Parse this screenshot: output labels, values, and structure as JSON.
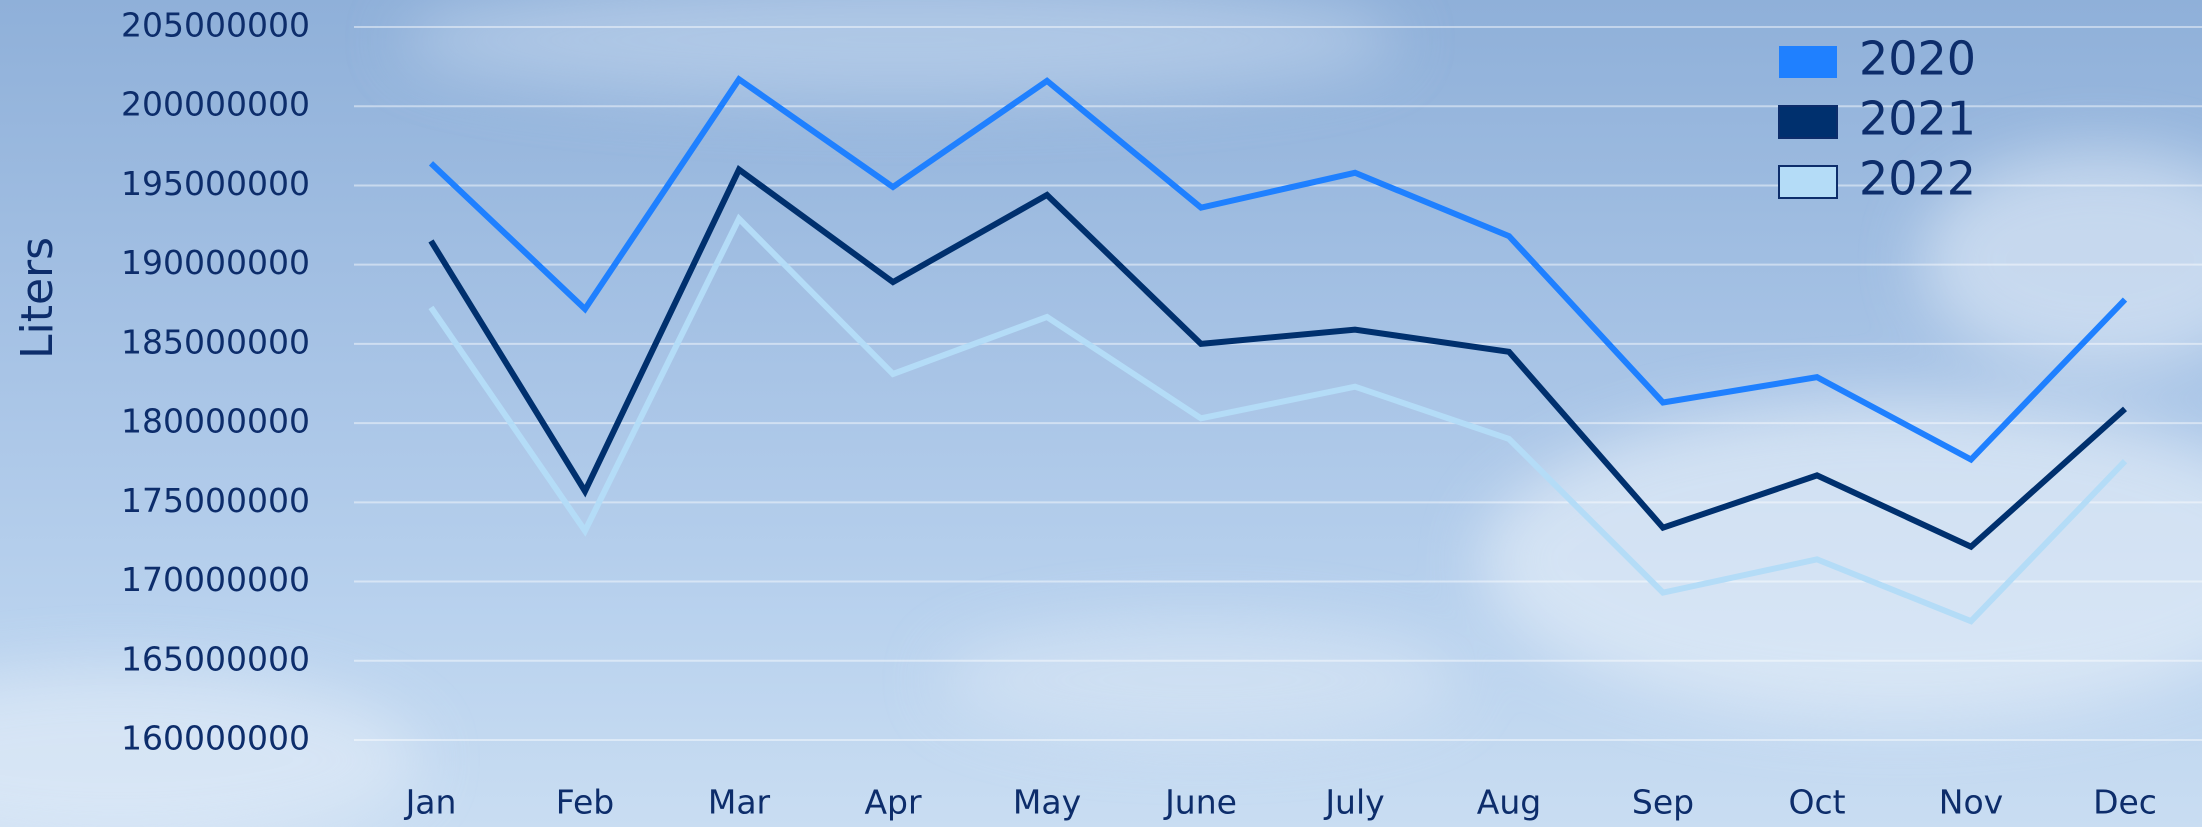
{
  "chart_data": {
    "type": "line",
    "y_label": "Liters",
    "categories": [
      "Jan",
      "Feb",
      "Mar",
      "Apr",
      "May",
      "June",
      "July",
      "Aug",
      "Sep",
      "Oct",
      "Nov",
      "Dec"
    ],
    "series": [
      {
        "name": "2020",
        "color": "#1f80ff",
        "values": [
          196400000,
          187200000,
          201700000,
          194900000,
          201600000,
          193600000,
          195800000,
          191800000,
          181300000,
          182900000,
          177700000,
          187800000
        ]
      },
      {
        "name": "2021",
        "color": "#00306e",
        "values": [
          191500000,
          175700000,
          196000000,
          188900000,
          194400000,
          185000000,
          185900000,
          184500000,
          173400000,
          176700000,
          172200000,
          180900000
        ]
      },
      {
        "name": "2022",
        "color": "#b4dcf7",
        "values": [
          187300000,
          173200000,
          192900000,
          183100000,
          186700000,
          180300000,
          182300000,
          179000000,
          169300000,
          171400000,
          167500000,
          177600000
        ]
      }
    ],
    "ylim": [
      160000000,
      205000000
    ],
    "yticks": [
      160000000,
      165000000,
      170000000,
      175000000,
      180000000,
      185000000,
      190000000,
      195000000,
      200000000,
      205000000
    ],
    "grid": true,
    "legend": "top-right"
  }
}
